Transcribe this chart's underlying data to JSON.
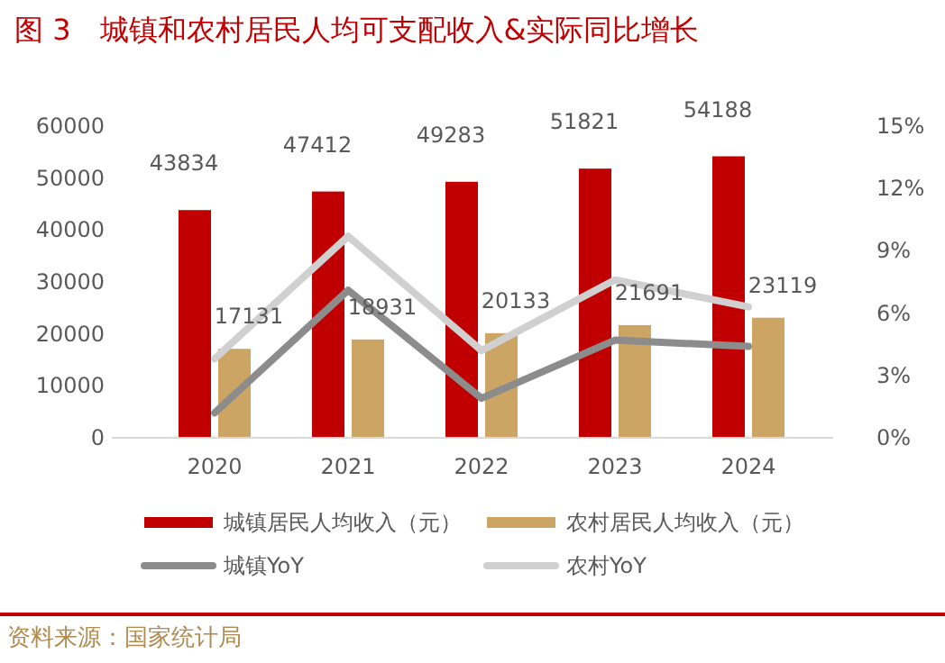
{
  "chart_data": {
    "type": "bar",
    "title": "图 3　城镇和农村居民人均可支配收入&实际同比增长",
    "categories": [
      "2020",
      "2021",
      "2022",
      "2023",
      "2024"
    ],
    "series": [
      {
        "name": "城镇居民人均收入（元）",
        "color": "#c00000",
        "values": [
          43834,
          47412,
          49283,
          51821,
          54188
        ],
        "value_labels": [
          "43834",
          "47412",
          "49283",
          "51821",
          "54188"
        ]
      },
      {
        "name": "农村居民人均收入（元）",
        "color": "#cca464",
        "values": [
          17131,
          18931,
          20133,
          21691,
          23119
        ],
        "value_labels": [
          "17131",
          "18931",
          "20133",
          "21691",
          "23119"
        ]
      },
      {
        "name": "城镇YoY",
        "type": "line",
        "axis": "y2",
        "color": "#8c8c8c",
        "values": [
          1.2,
          7.1,
          1.9,
          4.7,
          4.4
        ]
      },
      {
        "name": "农村YoY",
        "type": "line",
        "axis": "y2",
        "color": "#d0d0d0",
        "values": [
          3.8,
          9.7,
          4.2,
          7.6,
          6.3
        ]
      }
    ],
    "ylim": [
      0,
      60000
    ],
    "yticks": [
      0,
      10000,
      20000,
      30000,
      40000,
      50000,
      60000
    ],
    "y2lim": [
      0,
      15
    ],
    "y2ticks": [
      {
        "value": 0,
        "label": "0%"
      },
      {
        "value": 3,
        "label": "3%"
      },
      {
        "value": 6,
        "label": "6%"
      },
      {
        "value": 9,
        "label": "9%"
      },
      {
        "value": 12,
        "label": "12%"
      },
      {
        "value": 15,
        "label": "15%"
      }
    ],
    "legend": "bottom",
    "grid": false,
    "annotations": [
      "资料来源：国家统计局"
    ]
  }
}
